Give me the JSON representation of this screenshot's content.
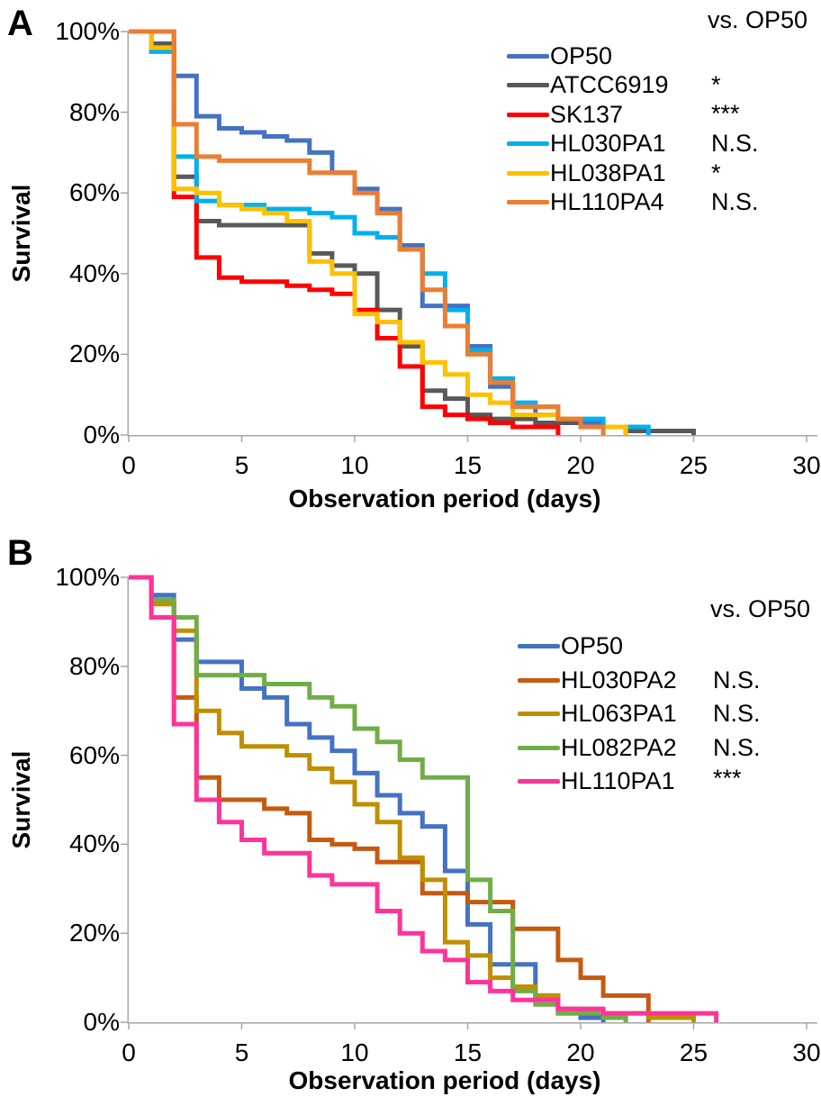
{
  "figure": {
    "description": "Two-panel Kaplan-Meier style survival curves of observation period in days",
    "vs_header": "vs. OP50"
  },
  "chart_data": [
    {
      "panel_label": "A",
      "type": "line",
      "subtype": "kaplan-meier-step-survival",
      "xlabel": "Observation period (days)",
      "ylabel": "Survival",
      "xlim": [
        0,
        30
      ],
      "ylim": [
        0,
        100
      ],
      "grid": "off",
      "legend_position": "top-right-inside",
      "legend_header": "vs. OP50",
      "x_tick_labels": [
        "0",
        "5",
        "10",
        "15",
        "20",
        "25",
        "30"
      ],
      "x_tick_values": [
        0,
        5,
        10,
        15,
        20,
        25,
        30
      ],
      "y_tick_labels": [
        "0%",
        "20%",
        "40%",
        "60%",
        "80%",
        "100%"
      ],
      "y_tick_values": [
        0,
        20,
        40,
        60,
        80,
        100
      ],
      "series": [
        {
          "name": "OP50",
          "color": "#4472C4",
          "significance": "",
          "points": [
            [
              0,
              100
            ],
            [
              2,
              89
            ],
            [
              3,
              79
            ],
            [
              4,
              76
            ],
            [
              5,
              75
            ],
            [
              6,
              74
            ],
            [
              7,
              73
            ],
            [
              8,
              70
            ],
            [
              9,
              65
            ],
            [
              10,
              61
            ],
            [
              11,
              56
            ],
            [
              12,
              47
            ],
            [
              13,
              32
            ],
            [
              15,
              22
            ],
            [
              16,
              12
            ],
            [
              17,
              7
            ],
            [
              18,
              5
            ],
            [
              19,
              4
            ],
            [
              20,
              3
            ],
            [
              21,
              2
            ],
            [
              22,
              0
            ]
          ]
        },
        {
          "name": "ATCC6919",
          "color": "#595959",
          "significance": "*",
          "points": [
            [
              0,
              100
            ],
            [
              1,
              97
            ],
            [
              2,
              64
            ],
            [
              3,
              53
            ],
            [
              4,
              52
            ],
            [
              8,
              45
            ],
            [
              9,
              42
            ],
            [
              10,
              40
            ],
            [
              11,
              31
            ],
            [
              12,
              22
            ],
            [
              13,
              11
            ],
            [
              14,
              9
            ],
            [
              15,
              5
            ],
            [
              16,
              4
            ],
            [
              18,
              3
            ],
            [
              20,
              2
            ],
            [
              22,
              1
            ],
            [
              25,
              0
            ]
          ]
        },
        {
          "name": "SK137",
          "color": "#FF0000",
          "significance": "***",
          "points": [
            [
              0,
              100
            ],
            [
              1,
              96
            ],
            [
              2,
              59
            ],
            [
              3,
              44
            ],
            [
              4,
              39
            ],
            [
              5,
              38
            ],
            [
              7,
              37
            ],
            [
              8,
              36
            ],
            [
              9,
              35
            ],
            [
              10,
              31
            ],
            [
              11,
              24
            ],
            [
              12,
              17
            ],
            [
              13,
              7
            ],
            [
              14,
              5
            ],
            [
              15,
              4
            ],
            [
              16,
              3
            ],
            [
              17,
              2
            ],
            [
              19,
              0
            ]
          ]
        },
        {
          "name": "HL030PA1",
          "color": "#00B0F0",
          "significance": "N.S.",
          "points": [
            [
              0,
              100
            ],
            [
              1,
              95
            ],
            [
              2,
              69
            ],
            [
              3,
              58
            ],
            [
              4,
              57
            ],
            [
              6,
              56
            ],
            [
              8,
              55
            ],
            [
              9,
              54
            ],
            [
              10,
              50
            ],
            [
              11,
              49
            ],
            [
              12,
              46
            ],
            [
              13,
              40
            ],
            [
              14,
              31
            ],
            [
              15,
              21
            ],
            [
              16,
              14
            ],
            [
              17,
              8
            ],
            [
              18,
              7
            ],
            [
              19,
              4
            ],
            [
              21,
              2
            ],
            [
              23,
              0
            ]
          ]
        },
        {
          "name": "HL038PA1",
          "color": "#FFC000",
          "significance": "*",
          "points": [
            [
              0,
              100
            ],
            [
              1,
              96
            ],
            [
              2,
              61
            ],
            [
              3,
              60
            ],
            [
              4,
              57
            ],
            [
              5,
              56
            ],
            [
              6,
              55
            ],
            [
              7,
              53
            ],
            [
              8,
              43
            ],
            [
              9,
              40
            ],
            [
              10,
              30
            ],
            [
              11,
              28
            ],
            [
              12,
              23
            ],
            [
              13,
              18
            ],
            [
              14,
              15
            ],
            [
              15,
              10
            ],
            [
              16,
              8
            ],
            [
              17,
              5
            ],
            [
              19,
              4
            ],
            [
              20,
              2
            ],
            [
              22,
              0
            ]
          ]
        },
        {
          "name": "HL110PA4",
          "color": "#ED7D31",
          "significance": "N.S.",
          "points": [
            [
              0,
              100
            ],
            [
              2,
              77
            ],
            [
              3,
              69
            ],
            [
              4,
              68
            ],
            [
              8,
              65
            ],
            [
              10,
              60
            ],
            [
              11,
              55
            ],
            [
              12,
              46
            ],
            [
              13,
              36
            ],
            [
              14,
              27
            ],
            [
              15,
              20
            ],
            [
              16,
              13
            ],
            [
              17,
              7
            ],
            [
              19,
              4
            ],
            [
              20,
              2
            ],
            [
              21,
              0
            ]
          ]
        }
      ]
    },
    {
      "panel_label": "B",
      "type": "line",
      "subtype": "kaplan-meier-step-survival",
      "xlabel": "Observation period (days)",
      "ylabel": "Survival",
      "xlim": [
        0,
        30
      ],
      "ylim": [
        0,
        100
      ],
      "grid": "off",
      "legend_position": "top-right-inside",
      "legend_header": "vs. OP50",
      "x_tick_labels": [
        "0",
        "5",
        "10",
        "15",
        "20",
        "25",
        "30"
      ],
      "x_tick_values": [
        0,
        5,
        10,
        15,
        20,
        25,
        30
      ],
      "y_tick_labels": [
        "0%",
        "20%",
        "40%",
        "60%",
        "80%",
        "100%"
      ],
      "y_tick_values": [
        0,
        20,
        40,
        60,
        80,
        100
      ],
      "series": [
        {
          "name": "OP50",
          "color": "#4472C4",
          "significance": "",
          "points": [
            [
              0,
              100
            ],
            [
              1,
              96
            ],
            [
              2,
              86
            ],
            [
              3,
              81
            ],
            [
              5,
              75
            ],
            [
              6,
              73
            ],
            [
              7,
              67
            ],
            [
              8,
              64
            ],
            [
              9,
              61
            ],
            [
              10,
              56
            ],
            [
              11,
              51
            ],
            [
              12,
              47
            ],
            [
              13,
              44
            ],
            [
              14,
              34
            ],
            [
              15,
              22
            ],
            [
              16,
              13
            ],
            [
              18,
              6
            ],
            [
              19,
              2
            ],
            [
              20,
              1
            ],
            [
              21,
              0
            ]
          ]
        },
        {
          "name": "HL030PA2",
          "color": "#C55A11",
          "significance": "N.S.",
          "points": [
            [
              0,
              100
            ],
            [
              1,
              94
            ],
            [
              2,
              73
            ],
            [
              3,
              55
            ],
            [
              4,
              50
            ],
            [
              6,
              48
            ],
            [
              7,
              47
            ],
            [
              8,
              41
            ],
            [
              9,
              40
            ],
            [
              10,
              39
            ],
            [
              11,
              36
            ],
            [
              13,
              29
            ],
            [
              15,
              27
            ],
            [
              17,
              21
            ],
            [
              19,
              14
            ],
            [
              20,
              10
            ],
            [
              21,
              6
            ],
            [
              23,
              0
            ]
          ]
        },
        {
          "name": "HL063PA1",
          "color": "#BF8F00",
          "significance": "N.S.",
          "points": [
            [
              0,
              100
            ],
            [
              1,
              94
            ],
            [
              2,
              88
            ],
            [
              3,
              70
            ],
            [
              4,
              65
            ],
            [
              5,
              62
            ],
            [
              7,
              60
            ],
            [
              8,
              57
            ],
            [
              9,
              54
            ],
            [
              10,
              49
            ],
            [
              11,
              45
            ],
            [
              12,
              37
            ],
            [
              13,
              32
            ],
            [
              14,
              18
            ],
            [
              15,
              15
            ],
            [
              16,
              10
            ],
            [
              17,
              8
            ],
            [
              18,
              6
            ],
            [
              19,
              3
            ],
            [
              20,
              2
            ],
            [
              23,
              1
            ],
            [
              25,
              0
            ]
          ]
        },
        {
          "name": "HL082PA2",
          "color": "#70AD47",
          "significance": "N.S.",
          "points": [
            [
              0,
              100
            ],
            [
              1,
              95
            ],
            [
              2,
              91
            ],
            [
              3,
              78
            ],
            [
              6,
              76
            ],
            [
              8,
              73
            ],
            [
              9,
              71
            ],
            [
              10,
              66
            ],
            [
              11,
              63
            ],
            [
              12,
              59
            ],
            [
              13,
              55
            ],
            [
              15,
              32
            ],
            [
              16,
              25
            ],
            [
              17,
              7
            ],
            [
              18,
              4
            ],
            [
              19,
              2
            ],
            [
              21,
              1
            ],
            [
              22,
              0
            ]
          ]
        },
        {
          "name": "HL110PA1",
          "color": "#FF3399",
          "significance": "***",
          "points": [
            [
              0,
              100
            ],
            [
              1,
              91
            ],
            [
              2,
              67
            ],
            [
              3,
              50
            ],
            [
              4,
              45
            ],
            [
              5,
              41
            ],
            [
              6,
              38
            ],
            [
              8,
              33
            ],
            [
              9,
              31
            ],
            [
              11,
              25
            ],
            [
              12,
              20
            ],
            [
              13,
              16
            ],
            [
              14,
              14
            ],
            [
              15,
              9
            ],
            [
              16,
              7
            ],
            [
              17,
              5
            ],
            [
              19,
              3
            ],
            [
              21,
              2
            ],
            [
              26,
              0
            ]
          ]
        }
      ]
    }
  ]
}
